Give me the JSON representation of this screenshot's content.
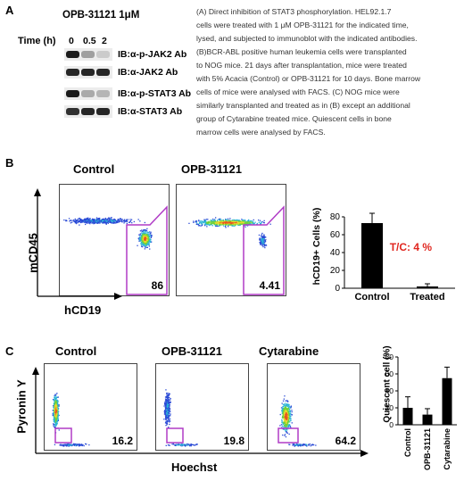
{
  "panel_a": {
    "letter": "A",
    "treatment": "OPB-31121 1μM",
    "time_label": "Time (h)",
    "time_points": [
      "0",
      "0.5",
      "2"
    ],
    "blots": [
      {
        "label": "IB:α-p-JAK2 Ab",
        "intensities": [
          0.95,
          0.35,
          0.15
        ]
      },
      {
        "label": "IB:α-JAK2 Ab",
        "intensities": [
          0.9,
          0.9,
          0.9
        ]
      },
      {
        "label": "IB:α-p-STAT3 Ab",
        "intensities": [
          0.95,
          0.3,
          0.25
        ]
      },
      {
        "label": "IB:α-STAT3 Ab",
        "intensities": [
          0.85,
          0.9,
          0.9
        ]
      }
    ],
    "caption": [
      "(A) Direct inhibition of STAT3 phosphorylation. HEL92.1.7",
      "cells were treated with 1 μM OPB-31121 for the indicated time,",
      "lysed, and subjected to immunoblot with the indicated antibodies.",
      "(B)BCR-ABL positive human leukemia cells were transplanted",
      "to NOG mice. 21 days after transplantation, mice were treated",
      "with 5% Acacia (Control) or OPB-31121 for 10 days. Bone marrow",
      "cells of mice were analysed with FACS. (C) NOG mice were",
      "similarly transplanted and treated as in (B) except an additional",
      "group of Cytarabine treated mice. Quiescent cells in bone",
      "marrow cells were analysed by FACS."
    ]
  },
  "panel_b": {
    "letter": "B",
    "plots": [
      {
        "title": "Control",
        "value": "86"
      },
      {
        "title": "OPB-31121",
        "value": "4.41"
      }
    ],
    "x_label": "hCD19",
    "y_label": "mCD45"
  },
  "panel_c": {
    "letter": "C",
    "plots": [
      {
        "title": "Control",
        "value": "16.2"
      },
      {
        "title": "OPB-31121",
        "value": "19.8"
      },
      {
        "title": "Cytarabine",
        "value": "64.2"
      }
    ],
    "x_label": "Hoechst",
    "y_label": "Pyronin Y"
  },
  "colors": {
    "gate": "#b03cc6",
    "annotation_red": "#e0261f",
    "bar": "#000000"
  },
  "chart_data": [
    {
      "type": "bar",
      "categories": [
        "Control",
        "Treated"
      ],
      "values": [
        73,
        2
      ],
      "errors": [
        11,
        3
      ],
      "ylabel": "hCD19+ Cells (%)",
      "ylim": [
        0,
        80
      ],
      "yticks": [
        "0",
        "20",
        "40",
        "60",
        "80"
      ],
      "annotation": "T/C: 4 %"
    },
    {
      "type": "bar",
      "categories": [
        "Control",
        "OPB-31121",
        "Cytarabine"
      ],
      "values": [
        20,
        12,
        55
      ],
      "errors": [
        13,
        7,
        13
      ],
      "ylabel": "Quiescent cell (%)",
      "ylim": [
        0,
        80
      ],
      "yticks": [
        "0",
        "20",
        "40",
        "60",
        "80"
      ]
    }
  ]
}
